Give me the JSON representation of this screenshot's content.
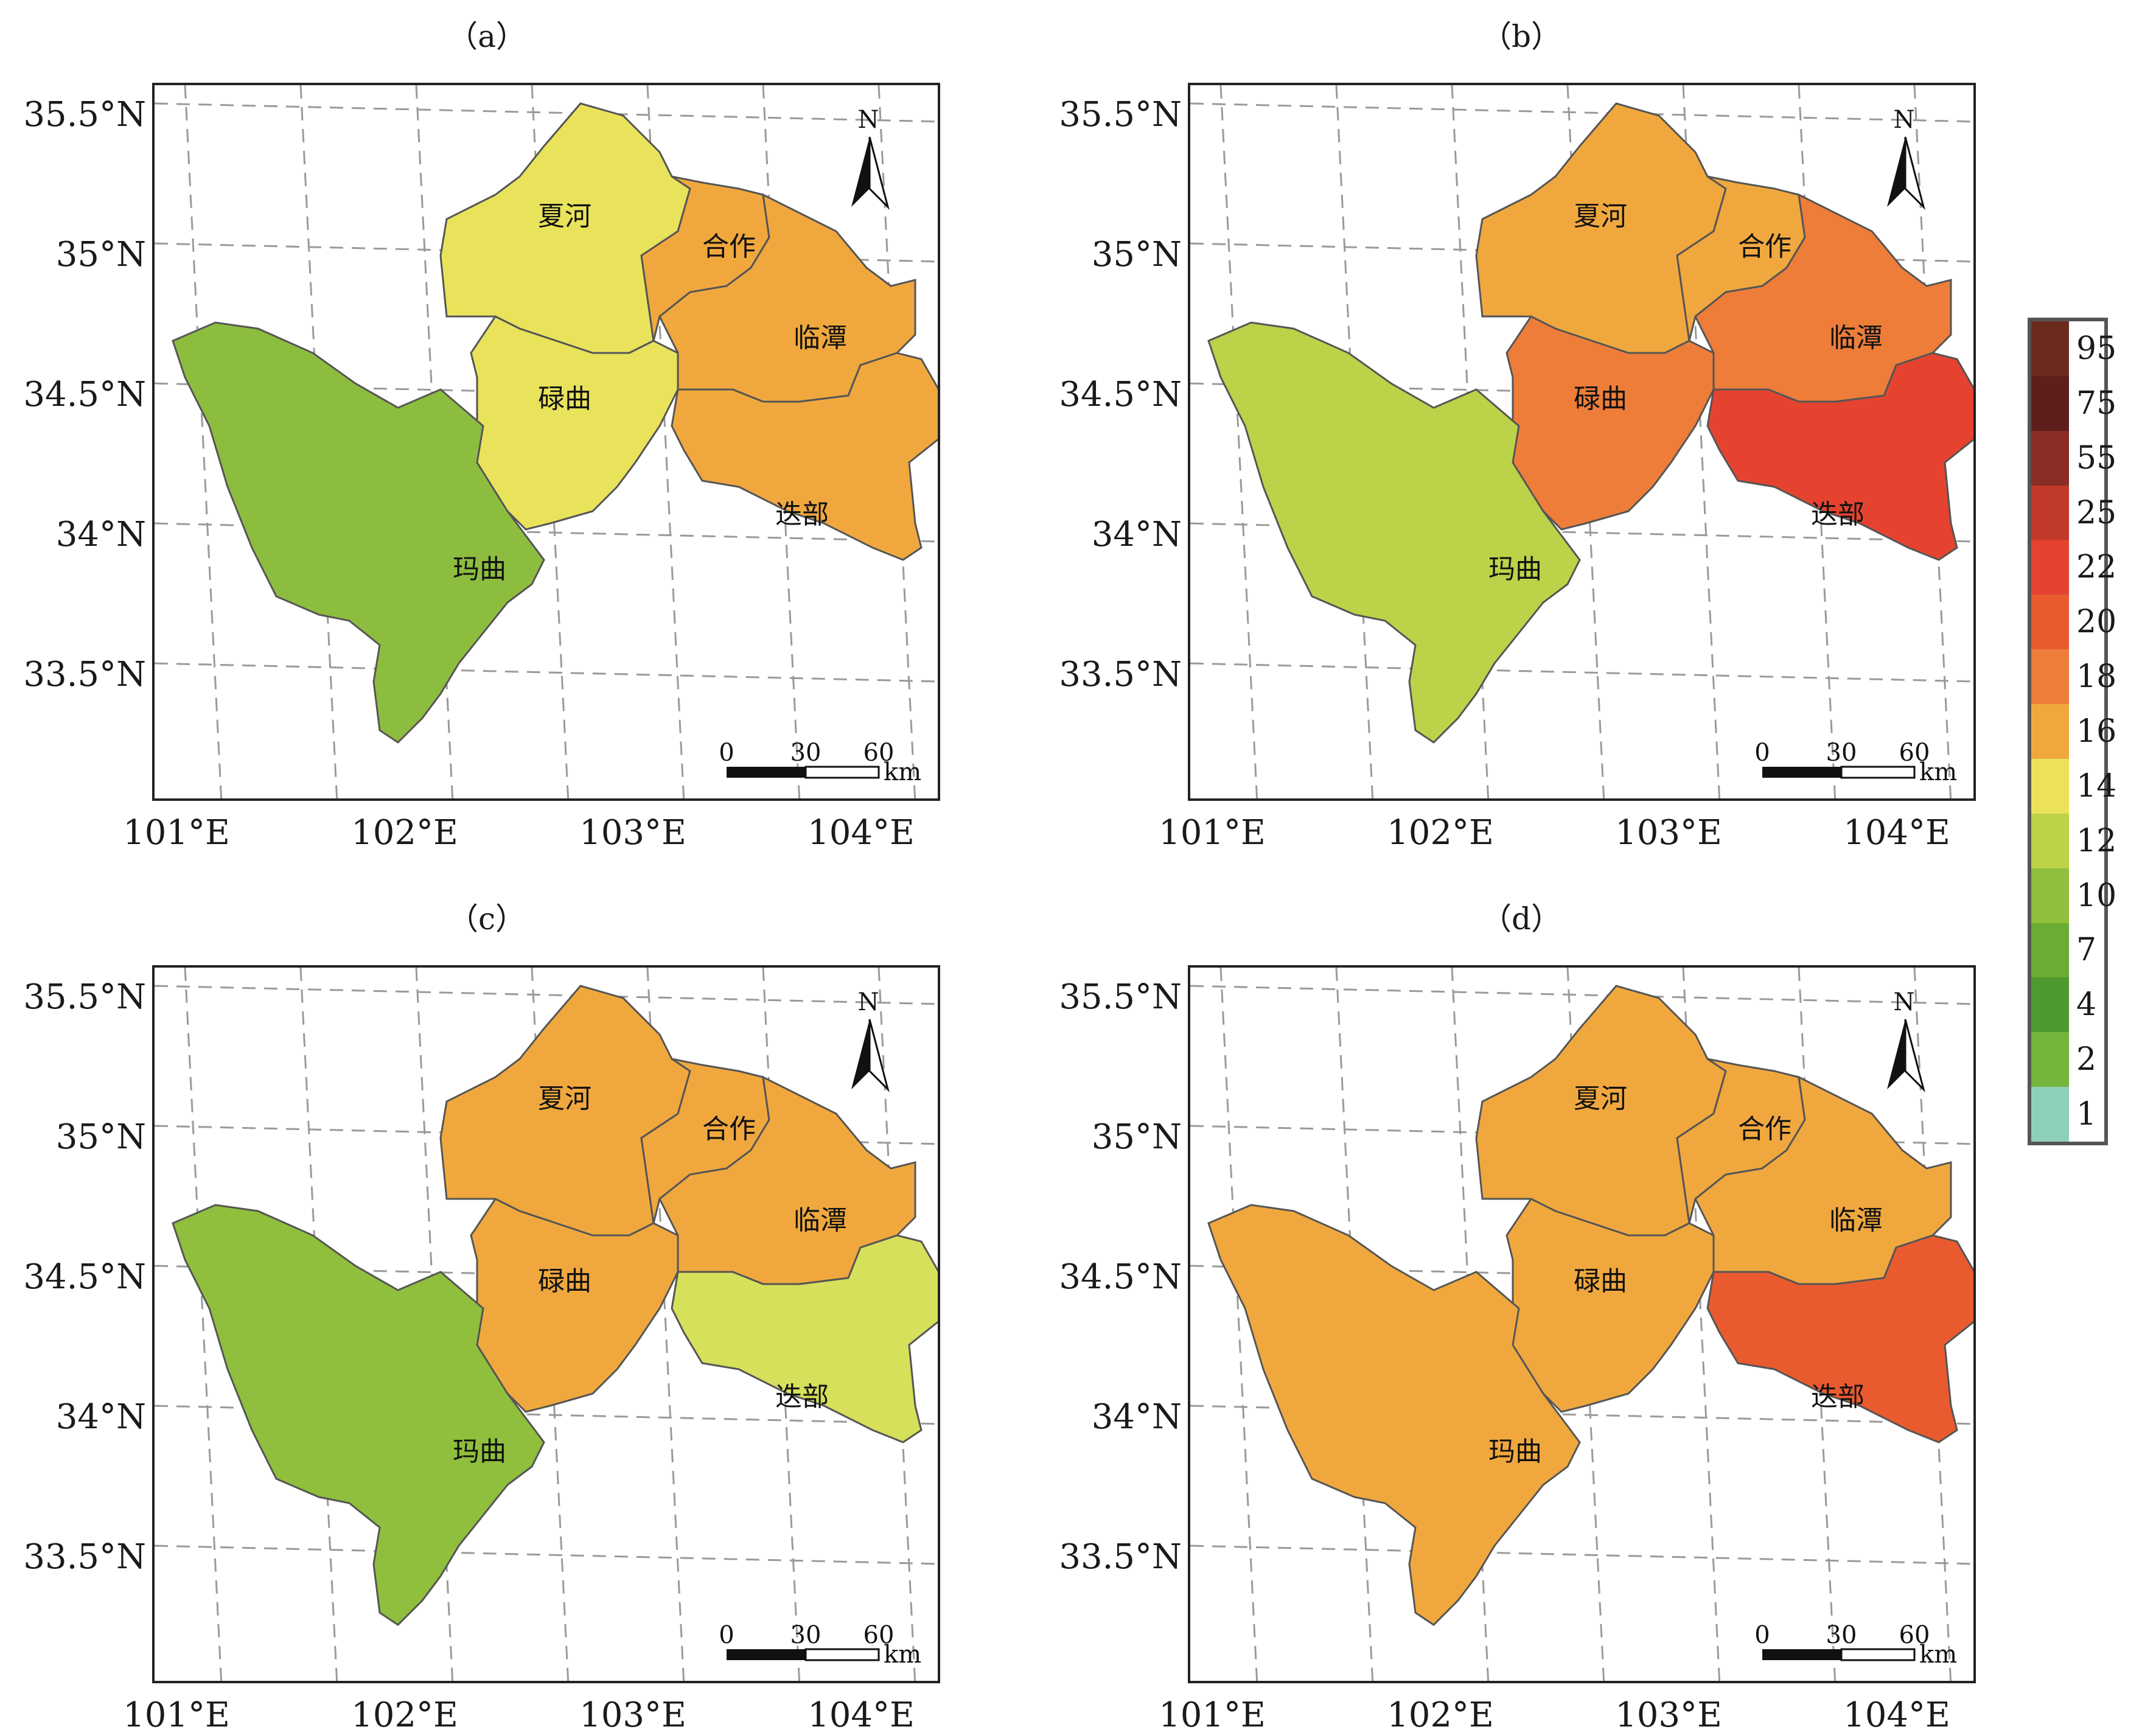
{
  "panels": [
    {
      "label": "（a）"
    },
    {
      "label": "（b）"
    },
    {
      "label": "（c）"
    },
    {
      "label": "（d）"
    }
  ],
  "lat_labels": [
    "35.5°N",
    "35°N",
    "34.5°N",
    "34°N",
    "33.5°N"
  ],
  "lon_labels": [
    "101°E",
    "102°E",
    "103°E",
    "104°E"
  ],
  "counties": [
    "夏河",
    "合作",
    "临潭",
    "碌曲",
    "迭部",
    "玛曲"
  ],
  "north_arrow_label": "N",
  "scale_bar": {
    "ticks": [
      "0",
      "30",
      "60"
    ],
    "unit": "km"
  },
  "legend": {
    "values": [
      "95",
      "75",
      "55",
      "25",
      "22",
      "20",
      "18",
      "16",
      "14",
      "12",
      "10",
      "7",
      "4",
      "2",
      "1"
    ],
    "colors": [
      "#6b2a1e",
      "#5c1f1c",
      "#8a2d24",
      "#c0392b",
      "#e5432f",
      "#ea5a2f",
      "#ee7d3a",
      "#f0a83e",
      "#ebe25a",
      "#bcd248",
      "#8fbf3c",
      "#6aad34",
      "#4e9a30",
      "#74b53c",
      "#8fd0bc"
    ]
  },
  "panel_colors": {
    "a": {
      "maqu": "#8dbd3f",
      "luqu": "#e9e35c",
      "xiahe": "#e9e35c",
      "hezuo": "#f0a83e",
      "lintan": "#f0a83e",
      "diebu": "#f0a83e"
    },
    "b": {
      "maqu": "#bcd248",
      "luqu": "#ee7d3a",
      "xiahe": "#f0a83e",
      "hezuo": "#f0a83e",
      "lintan": "#ee7d3a",
      "diebu": "#e5432f"
    },
    "c": {
      "maqu": "#8fbf3c",
      "luqu": "#f0a83e",
      "xiahe": "#f0a83e",
      "hezuo": "#f0a83e",
      "lintan": "#f0a83e",
      "diebu": "#d6e05a"
    },
    "d": {
      "maqu": "#f0a83e",
      "luqu": "#f0a83e",
      "xiahe": "#f0a83e",
      "hezuo": "#f0a83e",
      "lintan": "#f0a83e",
      "diebu": "#ea5a2f"
    }
  }
}
